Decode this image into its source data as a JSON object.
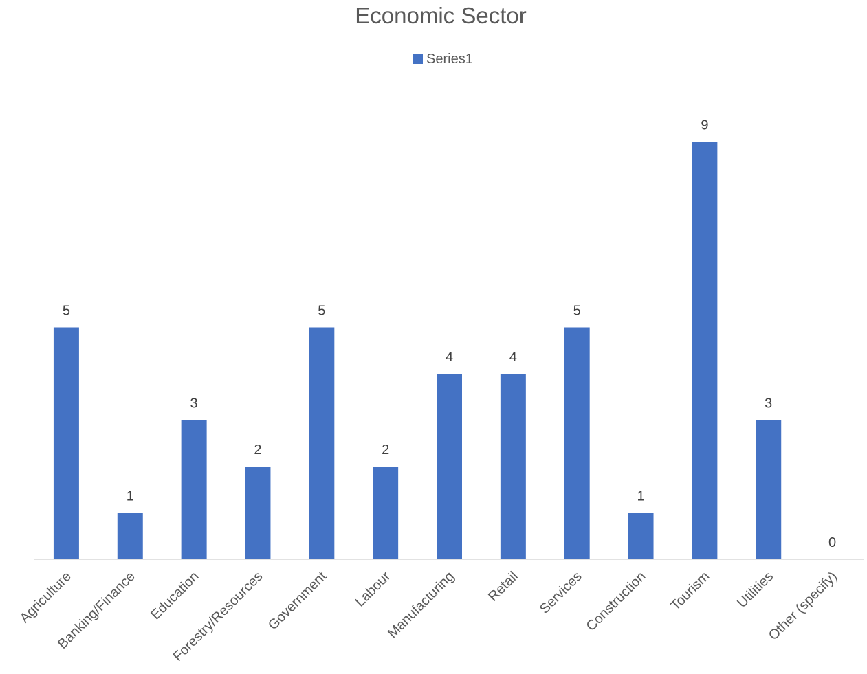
{
  "chart_data": {
    "type": "bar",
    "title": "Economic Sector",
    "xlabel": "",
    "ylabel": "",
    "categories": [
      "Agriculture",
      "Banking/Finance",
      "Education",
      "Forestry/Resources",
      "Government",
      "Labour",
      "Manufacturing",
      "Retail",
      "Services",
      "Construction",
      "Tourism",
      "Utilities",
      "Other (specify)"
    ],
    "series": [
      {
        "name": "Series1",
        "values": [
          5,
          1,
          3,
          2,
          5,
          2,
          4,
          4,
          5,
          1,
          9,
          3,
          0
        ],
        "color": "#4472C4"
      }
    ],
    "ylim": [
      0,
      10
    ],
    "grid": false,
    "legend": "top",
    "data_labels": true,
    "axis_color": "#D9D9D9"
  }
}
